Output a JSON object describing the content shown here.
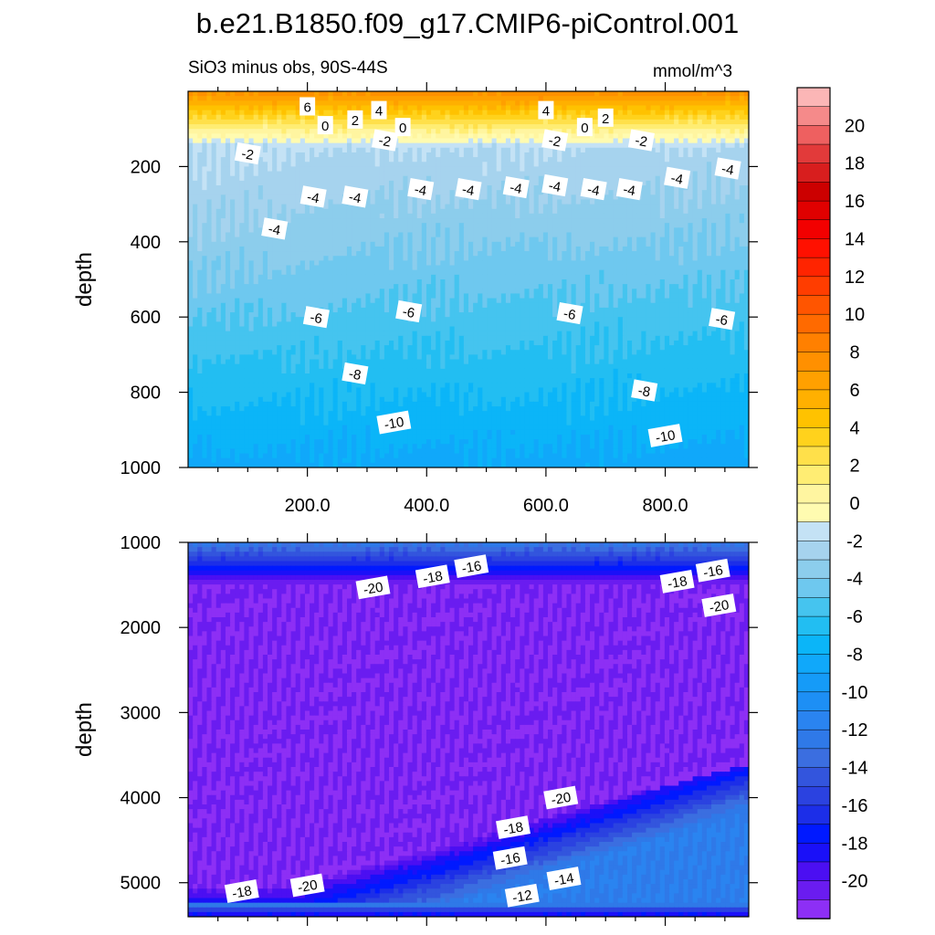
{
  "title": "b.e21.B1850.f09_g17.CMIP6-piControl.001",
  "chart_data": {
    "type": "heatmap",
    "subtitle": "SiO3 minus obs, 90S-44S",
    "units": "mmol/m^3",
    "colorbar": {
      "levels": [
        -22,
        -21,
        -20,
        -19,
        -18,
        -17,
        -16,
        -15,
        -14,
        -13,
        -12,
        -11,
        -10,
        -9,
        -8,
        -7,
        -6,
        -5,
        -4,
        -3,
        -2,
        -1,
        0,
        1,
        2,
        3,
        4,
        5,
        6,
        7,
        8,
        9,
        10,
        11,
        12,
        13,
        14,
        15,
        16,
        17,
        18,
        19,
        20,
        21
      ],
      "colors": [
        "#8d2ff5",
        "#6a1cf0",
        "#4b0ff2",
        "#1a10f8",
        "#0019ff",
        "#1c2ee8",
        "#2b42e0",
        "#3355dd",
        "#3b6ee0",
        "#2f79e8",
        "#2a84f0",
        "#1d8ff5",
        "#159bf8",
        "#10a8fa",
        "#0bb5f8",
        "#22bef2",
        "#45c4ef",
        "#6ec8ef",
        "#8ccdec",
        "#a6d3ee",
        "#c4e2f5",
        "#fffbb0",
        "#fff5a0",
        "#ffed73",
        "#ffe04a",
        "#ffd21c",
        "#ffc200",
        "#ffb000",
        "#ffa000",
        "#ff9000",
        "#ff8000",
        "#ff6a00",
        "#ff5500",
        "#ff3d00",
        "#ff2400",
        "#ff1000",
        "#f20000",
        "#e00000",
        "#cc0000",
        "#d81e1e",
        "#e23a3a",
        "#ee6060",
        "#f58a8a",
        "#fbb6b6"
      ],
      "tick_labels": [
        "20",
        "18",
        "16",
        "14",
        "12",
        "10",
        "8",
        "6",
        "4",
        "2",
        "0",
        "-2",
        "-4",
        "-6",
        "-8",
        "-10",
        "-12",
        "-14",
        "-16",
        "-18",
        "-20"
      ]
    },
    "panels": [
      {
        "name": "upper",
        "ylabel": "depth",
        "ylim": [
          1000,
          0
        ],
        "xlim": [
          0,
          940
        ],
        "x_tick_labels": [
          "200.0",
          "400.0",
          "600.0",
          "800.0"
        ],
        "x_ticks": [
          200,
          400,
          600,
          800
        ],
        "y_tick_labels": [
          "200",
          "400",
          "600",
          "800",
          "1000"
        ],
        "y_ticks": [
          200,
          400,
          600,
          800,
          1000
        ],
        "contour_labels": [
          {
            "x": 200,
            "y": 40,
            "t": "6"
          },
          {
            "x": 320,
            "y": 50,
            "t": "4"
          },
          {
            "x": 280,
            "y": 75,
            "t": "2"
          },
          {
            "x": 230,
            "y": 90,
            "t": "0"
          },
          {
            "x": 360,
            "y": 95,
            "t": "0"
          },
          {
            "x": 330,
            "y": 130,
            "t": "-2"
          },
          {
            "x": 100,
            "y": 165,
            "t": "-2"
          },
          {
            "x": 600,
            "y": 50,
            "t": "4"
          },
          {
            "x": 700,
            "y": 70,
            "t": "2"
          },
          {
            "x": 665,
            "y": 95,
            "t": "0"
          },
          {
            "x": 615,
            "y": 130,
            "t": "-2"
          },
          {
            "x": 760,
            "y": 130,
            "t": "-2"
          },
          {
            "x": 145,
            "y": 365,
            "t": "-4"
          },
          {
            "x": 210,
            "y": 280,
            "t": "-4"
          },
          {
            "x": 280,
            "y": 280,
            "t": "-4"
          },
          {
            "x": 390,
            "y": 260,
            "t": "-4"
          },
          {
            "x": 470,
            "y": 260,
            "t": "-4"
          },
          {
            "x": 550,
            "y": 255,
            "t": "-4"
          },
          {
            "x": 615,
            "y": 250,
            "t": "-4"
          },
          {
            "x": 680,
            "y": 260,
            "t": "-4"
          },
          {
            "x": 740,
            "y": 260,
            "t": "-4"
          },
          {
            "x": 820,
            "y": 230,
            "t": "-4"
          },
          {
            "x": 905,
            "y": 205,
            "t": "-4"
          },
          {
            "x": 215,
            "y": 600,
            "t": "-6"
          },
          {
            "x": 370,
            "y": 585,
            "t": "-6"
          },
          {
            "x": 640,
            "y": 590,
            "t": "-6"
          },
          {
            "x": 895,
            "y": 605,
            "t": "-6"
          },
          {
            "x": 280,
            "y": 750,
            "t": "-8"
          },
          {
            "x": 765,
            "y": 795,
            "t": "-8"
          },
          {
            "x": 345,
            "y": 880,
            "t": "-10"
          },
          {
            "x": 800,
            "y": 915,
            "t": "-10"
          }
        ]
      },
      {
        "name": "lower",
        "ylabel": "depth",
        "ylim": [
          5400,
          1000
        ],
        "xlim": [
          0,
          940
        ],
        "y_tick_labels": [
          "1000",
          "2000",
          "3000",
          "4000",
          "5000"
        ],
        "y_ticks": [
          1000,
          2000,
          3000,
          4000,
          5000
        ],
        "contour_labels": [
          {
            "x": 475,
            "y": 1280,
            "t": "-16"
          },
          {
            "x": 410,
            "y": 1400,
            "t": "-18"
          },
          {
            "x": 310,
            "y": 1530,
            "t": "-20"
          },
          {
            "x": 880,
            "y": 1330,
            "t": "-16"
          },
          {
            "x": 820,
            "y": 1460,
            "t": "-18"
          },
          {
            "x": 890,
            "y": 1740,
            "t": "-20"
          },
          {
            "x": 625,
            "y": 4000,
            "t": "-20"
          },
          {
            "x": 545,
            "y": 4350,
            "t": "-18"
          },
          {
            "x": 540,
            "y": 4710,
            "t": "-16"
          },
          {
            "x": 630,
            "y": 4950,
            "t": "-14"
          },
          {
            "x": 560,
            "y": 5150,
            "t": "-12"
          },
          {
            "x": 200,
            "y": 5030,
            "t": "-20"
          },
          {
            "x": 90,
            "y": 5100,
            "t": "-18"
          }
        ]
      }
    ]
  }
}
